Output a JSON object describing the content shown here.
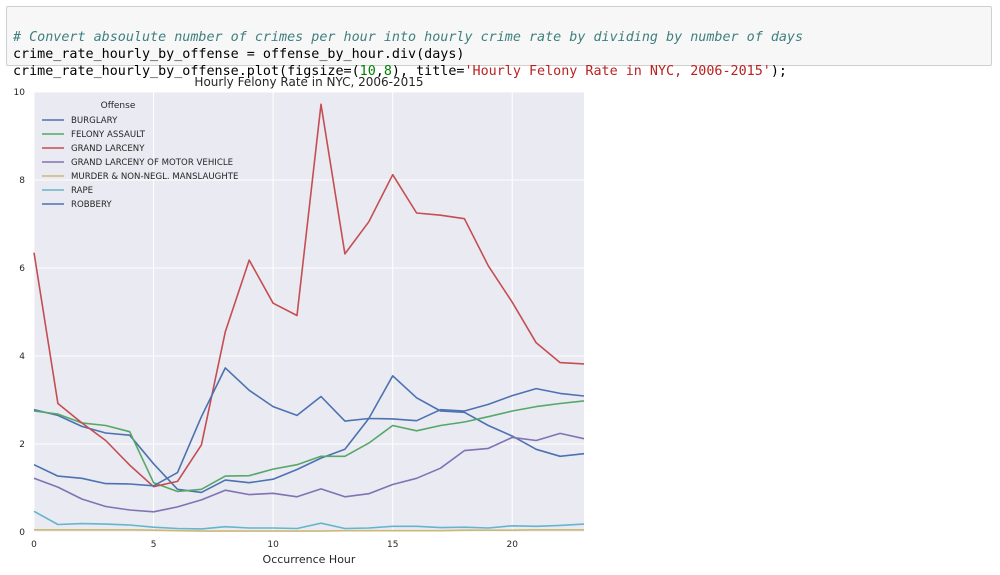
{
  "code": {
    "line1": "# Convert absoulute number of crimes per hour into hourly crime rate by dividing by number of days",
    "line2": "crime_rate_hourly_by_offense = offense_by_hour.div(days)",
    "line3_prefix": "crime_rate_hourly_by_offense.plot(figsize=(",
    "line3_num1": "10",
    "line3_comma": ",",
    "line3_num2": "8",
    "line3_mid": "), title=",
    "line3_str": "'Hourly Felony Rate in NYC, 2006-2015'",
    "line3_end": ");"
  },
  "chart_data": {
    "type": "line",
    "title": "Hourly Felony Rate in NYC, 2006-2015",
    "xlabel": "Occurrence Hour",
    "ylabel": "",
    "xlim": [
      0,
      23
    ],
    "ylim": [
      0,
      10
    ],
    "xticks": [
      0,
      5,
      10,
      15,
      20
    ],
    "yticks": [
      0,
      2,
      4,
      6,
      8,
      10
    ],
    "grid": true,
    "legend": {
      "title": "Offense",
      "placement": "top-left"
    },
    "x": [
      0,
      1,
      2,
      3,
      4,
      5,
      6,
      7,
      8,
      9,
      10,
      11,
      12,
      13,
      14,
      15,
      16,
      17,
      18,
      19,
      20,
      21,
      22,
      23
    ],
    "series": [
      {
        "name": "BURGLARY",
        "color": "#4c72b0",
        "values": [
          2.78,
          2.65,
          2.4,
          2.25,
          2.2,
          1.55,
          0.97,
          0.9,
          1.18,
          1.12,
          1.2,
          1.42,
          1.68,
          1.88,
          2.58,
          3.55,
          3.05,
          2.75,
          2.72,
          2.42,
          2.18,
          1.88,
          1.72,
          1.78
        ]
      },
      {
        "name": "FELONY ASSAULT",
        "color": "#55a868",
        "values": [
          2.75,
          2.68,
          2.48,
          2.42,
          2.28,
          1.12,
          0.92,
          0.97,
          1.27,
          1.28,
          1.43,
          1.53,
          1.72,
          1.72,
          2.02,
          2.42,
          2.3,
          2.42,
          2.5,
          2.62,
          2.75,
          2.85,
          2.92,
          2.98
        ]
      },
      {
        "name": "GRAND LARCENY",
        "color": "#c44e52",
        "values": [
          6.35,
          2.92,
          2.48,
          2.08,
          1.52,
          1.03,
          1.15,
          1.98,
          4.55,
          6.18,
          5.2,
          4.92,
          9.72,
          6.32,
          7.05,
          8.12,
          7.25,
          7.2,
          7.12,
          6.05,
          5.22,
          4.3,
          3.85,
          3.82
        ]
      },
      {
        "name": "GRAND LARCENY OF MOTOR VEHICLE",
        "color": "#8172b2",
        "values": [
          1.22,
          1.02,
          0.75,
          0.58,
          0.5,
          0.46,
          0.57,
          0.73,
          0.95,
          0.85,
          0.88,
          0.8,
          0.98,
          0.8,
          0.87,
          1.08,
          1.22,
          1.45,
          1.85,
          1.9,
          2.15,
          2.08,
          2.24,
          2.12
        ]
      },
      {
        "name": "MURDER & NON-NEGL. MANSLAUGHTE",
        "color": "#ccb974",
        "values": [
          0.05,
          0.05,
          0.05,
          0.05,
          0.05,
          0.04,
          0.03,
          0.02,
          0.02,
          0.02,
          0.02,
          0.02,
          0.02,
          0.03,
          0.03,
          0.03,
          0.03,
          0.03,
          0.04,
          0.04,
          0.04,
          0.05,
          0.05,
          0.05
        ]
      },
      {
        "name": "RAPE",
        "color": "#64b5cd",
        "values": [
          0.47,
          0.17,
          0.19,
          0.18,
          0.16,
          0.11,
          0.08,
          0.07,
          0.12,
          0.09,
          0.09,
          0.08,
          0.2,
          0.08,
          0.09,
          0.13,
          0.13,
          0.1,
          0.11,
          0.09,
          0.14,
          0.13,
          0.15,
          0.18
        ]
      },
      {
        "name": "ROBBERY",
        "color": "#4c72b0",
        "values": [
          1.53,
          1.27,
          1.22,
          1.1,
          1.09,
          1.05,
          1.35,
          2.62,
          3.73,
          3.22,
          2.85,
          2.65,
          3.08,
          2.52,
          2.58,
          2.57,
          2.53,
          2.78,
          2.75,
          2.9,
          3.1,
          3.26,
          3.15,
          3.09
        ]
      }
    ]
  }
}
